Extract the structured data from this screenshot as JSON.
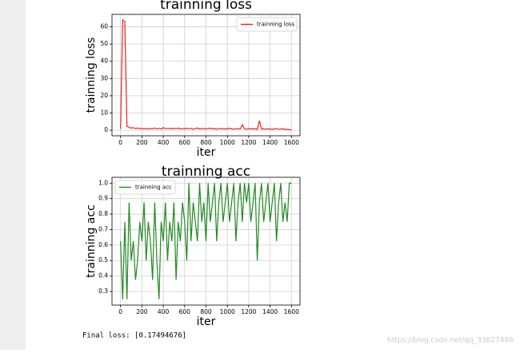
{
  "chart_data": [
    {
      "type": "line",
      "title": "trainning loss",
      "xlabel": "iter",
      "ylabel": "trainning loss",
      "x": [
        0,
        20,
        40,
        60,
        80,
        100,
        120,
        140,
        160,
        180,
        200,
        220,
        240,
        260,
        280,
        300,
        320,
        340,
        360,
        380,
        400,
        420,
        440,
        460,
        480,
        500,
        520,
        540,
        560,
        580,
        600,
        620,
        640,
        660,
        680,
        700,
        720,
        740,
        760,
        780,
        800,
        820,
        840,
        860,
        880,
        900,
        920,
        940,
        960,
        980,
        1000,
        1020,
        1040,
        1060,
        1080,
        1100,
        1120,
        1140,
        1160,
        1180,
        1200,
        1220,
        1240,
        1260,
        1280,
        1300,
        1320,
        1340,
        1360,
        1380,
        1400,
        1420,
        1440,
        1460,
        1480,
        1500,
        1520,
        1540,
        1560,
        1580,
        1600
      ],
      "series": [
        {
          "name": "trainning loss",
          "color": "#e8211d",
          "values": [
            0.8,
            64,
            63,
            2.2,
            1.8,
            1.2,
            1.5,
            1.0,
            1.3,
            0.9,
            1.1,
            0.8,
            1.2,
            0.7,
            1.0,
            0.9,
            1.3,
            0.8,
            1.1,
            0.7,
            1.5,
            0.9,
            1.0,
            1.2,
            0.8,
            1.1,
            0.9,
            1.3,
            0.7,
            1.0,
            0.8,
            1.2,
            0.9,
            1.1,
            0.6,
            1.0,
            1.3,
            0.8,
            0.9,
            1.1,
            0.7,
            1.0,
            1.2,
            0.8,
            0.9,
            0.6,
            1.1,
            0.8,
            1.0,
            0.7,
            0.9,
            1.2,
            0.8,
            0.6,
            1.0,
            0.9,
            0.7,
            3.2,
            0.8,
            0.6,
            1.0,
            0.7,
            0.9,
            0.8,
            0.5,
            5.5,
            0.7,
            0.8,
            0.6,
            0.9,
            0.7,
            0.5,
            0.8,
            1.0,
            0.6,
            0.7,
            0.9,
            0.5,
            0.6,
            0.4,
            0.3
          ]
        }
      ],
      "xlim": [
        -80,
        1680
      ],
      "xticks": [
        0,
        200,
        400,
        600,
        800,
        1000,
        1200,
        1400,
        1600
      ],
      "ylim": [
        -3.2,
        67.2
      ],
      "yticks": [
        0,
        10,
        20,
        30,
        40,
        50,
        60
      ],
      "grid": true,
      "legend": "upper right"
    },
    {
      "type": "line",
      "title": "trainning acc",
      "xlabel": "iter",
      "ylabel": "trainning acc",
      "x": [
        0,
        20,
        40,
        60,
        80,
        100,
        120,
        140,
        160,
        180,
        200,
        220,
        240,
        260,
        280,
        300,
        320,
        340,
        360,
        380,
        400,
        420,
        440,
        460,
        480,
        500,
        520,
        540,
        560,
        580,
        600,
        620,
        640,
        660,
        680,
        700,
        720,
        740,
        760,
        780,
        800,
        820,
        840,
        860,
        880,
        900,
        920,
        940,
        960,
        980,
        1000,
        1020,
        1040,
        1060,
        1080,
        1100,
        1120,
        1140,
        1160,
        1180,
        1200,
        1220,
        1240,
        1260,
        1280,
        1300,
        1320,
        1340,
        1360,
        1380,
        1400,
        1420,
        1440,
        1460,
        1480,
        1500,
        1520,
        1540,
        1560,
        1580,
        1600
      ],
      "series": [
        {
          "name": "trainning acc",
          "color": "#218a21",
          "values": [
            0.625,
            0.25,
            0.75,
            0.25,
            0.875,
            0.5,
            0.625,
            0.375,
            0.5,
            0.75,
            0.625,
            0.875,
            0.5,
            0.75,
            0.625,
            0.375,
            0.875,
            0.5,
            0.25,
            0.75,
            0.625,
            0.875,
            0.5,
            0.75,
            0.625,
            0.875,
            0.375,
            0.75,
            0.625,
            0.875,
            0.75,
            0.5,
            1.0,
            0.625,
            0.875,
            0.75,
            0.625,
            1.0,
            0.75,
            0.875,
            0.625,
            1.0,
            0.75,
            0.875,
            1.0,
            0.625,
            0.875,
            1.0,
            0.75,
            0.875,
            1.0,
            0.75,
            0.875,
            1.0,
            0.625,
            0.875,
            1.0,
            0.75,
            1.0,
            0.875,
            1.0,
            0.75,
            0.875,
            1.0,
            0.5,
            0.875,
            1.0,
            0.75,
            0.875,
            1.0,
            0.75,
            0.875,
            1.0,
            0.625,
            0.875,
            1.0,
            0.75,
            0.875,
            0.75,
            1.0,
            1.0
          ]
        }
      ],
      "xlim": [
        -80,
        1680
      ],
      "xticks": [
        0,
        200,
        400,
        600,
        800,
        1000,
        1200,
        1400,
        1600
      ],
      "ylim": [
        0.2125,
        1.0375
      ],
      "yticks": [
        0.3,
        0.4,
        0.5,
        0.6,
        0.7,
        0.8,
        0.9,
        {
          "value": 1,
          "label": "1.0"
        }
      ],
      "grid": true,
      "legend": "upper left"
    }
  ],
  "output_text": "Final loss: [0.17494676]",
  "watermark": "https://blog.csdn.net/qq_33627486"
}
